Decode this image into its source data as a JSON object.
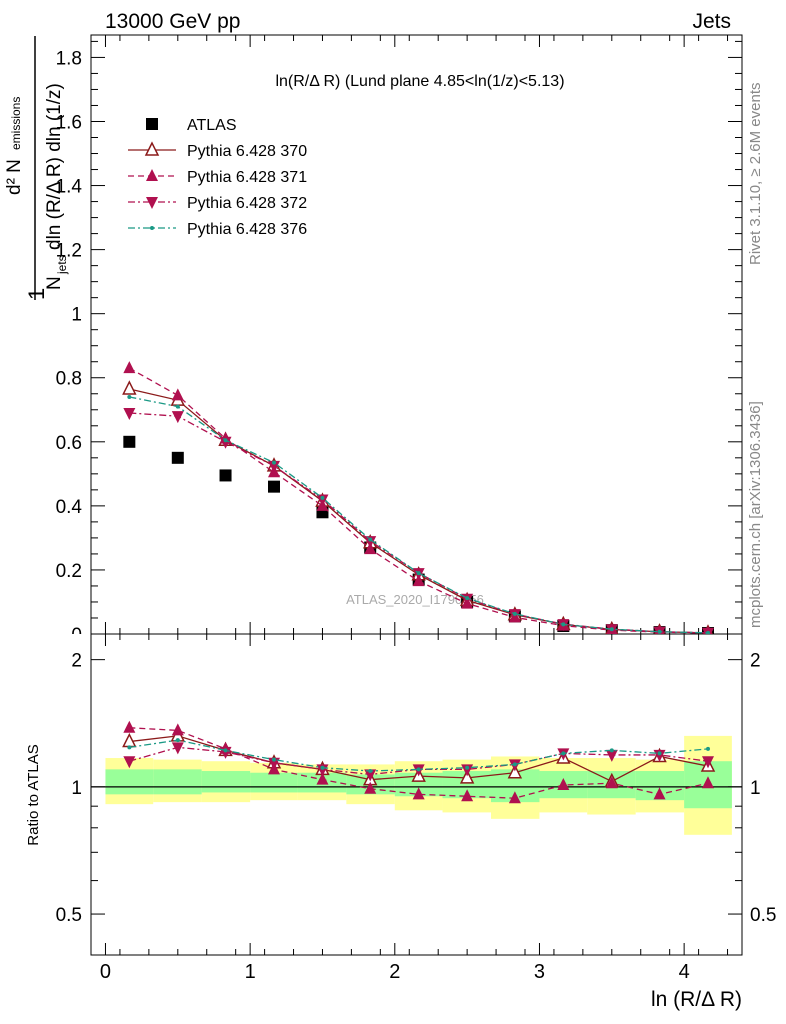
{
  "header": {
    "left": "13000 GeV pp",
    "right": "Jets"
  },
  "side_labels": {
    "rivet": "Rivet 3.1.10, ≥ 2.6M events",
    "mcplots": "mcplots.cern.ch [arXiv:1306.3436]"
  },
  "watermark": "ATLAS_2020_I1790256",
  "chart_data": [
    {
      "type": "scatter",
      "panel": "main",
      "title": "ln(R/Δ R) (Lund plane 4.85<ln(1/z)<5.13)",
      "ylabel": "1/N_jets d²N_emissions / dln(R/Δ R) dln(1/z)",
      "xlim": [
        -0.1,
        4.4
      ],
      "ylim": [
        0,
        1.87
      ],
      "grid": false,
      "legend_position": "top-left",
      "x": [
        0.165,
        0.5,
        0.83,
        1.165,
        1.5,
        1.83,
        2.165,
        2.5,
        2.83,
        3.165,
        3.5,
        3.83,
        4.165
      ],
      "y_ticks": [
        "0.2",
        "0.4",
        "0.6",
        "0.8",
        "1",
        "1.2",
        "1.4",
        "1.6",
        "1.8"
      ],
      "series": [
        {
          "name": "ATLAS",
          "color": "#000000",
          "marker": "square",
          "line": "none",
          "values": [
            0.6,
            0.55,
            0.495,
            0.46,
            0.38,
            0.27,
            0.17,
            0.1,
            0.055,
            0.025,
            0.012,
            0.006,
            0.003
          ]
        },
        {
          "name": "Pythia 6.428 370",
          "color": "#8b1a1a",
          "marker": "triangle-up-open",
          "line": "solid",
          "values": [
            0.765,
            0.73,
            0.605,
            0.525,
            0.415,
            0.285,
            0.185,
            0.105,
            0.06,
            0.03,
            0.014,
            0.007,
            0.0035
          ]
        },
        {
          "name": "Pythia 6.428 371",
          "color": "#b0104f",
          "marker": "triangle-up",
          "line": "dashed",
          "values": [
            0.83,
            0.745,
            0.61,
            0.505,
            0.4,
            0.265,
            0.165,
            0.095,
            0.052,
            0.026,
            0.012,
            0.0058,
            0.003
          ]
        },
        {
          "name": "Pythia 6.428 372",
          "color": "#b0104f",
          "marker": "triangle-down",
          "line": "dashdot",
          "values": [
            0.69,
            0.68,
            0.6,
            0.525,
            0.42,
            0.29,
            0.19,
            0.11,
            0.062,
            0.031,
            0.015,
            0.0072,
            0.0036
          ]
        },
        {
          "name": "Pythia 6.428 376",
          "color": "#1a9985",
          "marker": "dot",
          "line": "dashdot",
          "values": [
            0.74,
            0.71,
            0.605,
            0.535,
            0.425,
            0.295,
            0.19,
            0.112,
            0.063,
            0.03,
            0.015,
            0.007,
            0.0037
          ]
        }
      ]
    },
    {
      "type": "line",
      "panel": "ratio",
      "ylabel": "Ratio to ATLAS",
      "xlabel": "ln (R/Δ R)",
      "xlim": [
        -0.1,
        4.4
      ],
      "ylim": [
        0.4,
        2.3
      ],
      "y_ticks": [
        "0.5",
        "1",
        "2"
      ],
      "x_ticks": [
        "0",
        "1",
        "2",
        "3",
        "4"
      ],
      "x_edges": [
        0.0,
        0.33,
        0.665,
        1.0,
        1.33,
        1.665,
        2.0,
        2.33,
        2.665,
        3.0,
        3.33,
        3.665,
        4.0,
        4.33
      ],
      "band_yellow": [
        [
          0.91,
          1.17
        ],
        [
          0.92,
          1.16
        ],
        [
          0.92,
          1.15
        ],
        [
          0.93,
          1.14
        ],
        [
          0.93,
          1.13
        ],
        [
          0.91,
          1.13
        ],
        [
          0.88,
          1.15
        ],
        [
          0.87,
          1.16
        ],
        [
          0.84,
          1.18
        ],
        [
          0.87,
          1.17
        ],
        [
          0.86,
          1.17
        ],
        [
          0.87,
          1.16
        ],
        [
          0.77,
          1.32
        ]
      ],
      "band_green": [
        [
          0.96,
          1.1
        ],
        [
          0.96,
          1.1
        ],
        [
          0.97,
          1.09
        ],
        [
          0.97,
          1.08
        ],
        [
          0.97,
          1.08
        ],
        [
          0.96,
          1.07
        ],
        [
          0.95,
          1.08
        ],
        [
          0.94,
          1.09
        ],
        [
          0.92,
          1.1
        ],
        [
          0.94,
          1.09
        ],
        [
          0.94,
          1.09
        ],
        [
          0.93,
          1.09
        ],
        [
          0.89,
          1.15
        ]
      ],
      "x": [
        0.165,
        0.5,
        0.83,
        1.165,
        1.5,
        1.83,
        2.165,
        2.5,
        2.83,
        3.165,
        3.5,
        3.83,
        4.165
      ],
      "series": [
        {
          "name": "Pythia 6.428 370",
          "color": "#8b1a1a",
          "marker": "triangle-up-open",
          "line": "solid",
          "values": [
            1.28,
            1.32,
            1.22,
            1.14,
            1.1,
            1.04,
            1.06,
            1.05,
            1.08,
            1.17,
            1.03,
            1.18,
            1.12
          ]
        },
        {
          "name": "Pythia 6.428 371",
          "color": "#b0104f",
          "marker": "triangle-up",
          "line": "dashed",
          "values": [
            1.38,
            1.36,
            1.23,
            1.1,
            1.04,
            0.99,
            0.96,
            0.95,
            0.94,
            1.01,
            1.02,
            0.96,
            1.02
          ]
        },
        {
          "name": "Pythia 6.428 372",
          "color": "#b0104f",
          "marker": "triangle-down",
          "line": "dashdot",
          "values": [
            1.15,
            1.24,
            1.21,
            1.14,
            1.1,
            1.07,
            1.1,
            1.1,
            1.13,
            1.2,
            1.19,
            1.19,
            1.15
          ]
        },
        {
          "name": "Pythia 6.428 376",
          "color": "#1a9985",
          "marker": "dot",
          "line": "dashdot",
          "values": [
            1.24,
            1.29,
            1.22,
            1.16,
            1.11,
            1.09,
            1.1,
            1.11,
            1.13,
            1.2,
            1.22,
            1.2,
            1.23
          ]
        }
      ]
    }
  ]
}
